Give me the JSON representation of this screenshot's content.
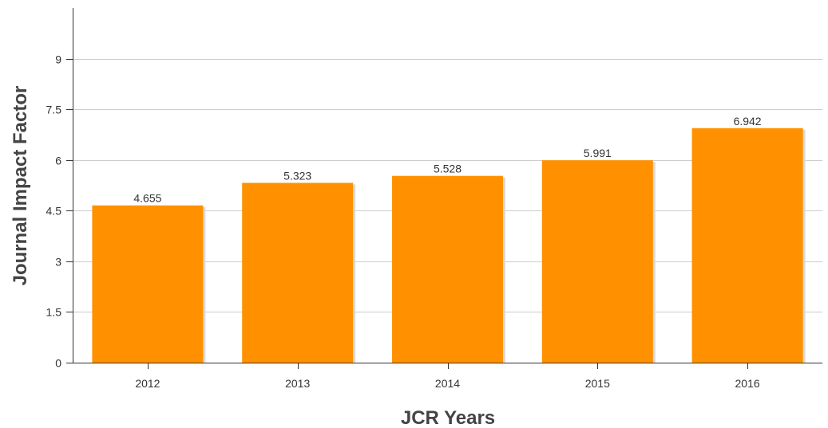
{
  "chart_data": {
    "type": "bar",
    "categories": [
      "2012",
      "2013",
      "2014",
      "2015",
      "2016"
    ],
    "values": [
      4.655,
      5.323,
      5.528,
      5.991,
      6.942
    ],
    "data_labels": [
      "4.655",
      "5.323",
      "5.528",
      "5.991",
      "6.942"
    ],
    "xlabel": "JCR Years",
    "ylabel": "Journal Impact Factor",
    "ylim": [
      0,
      10.5
    ],
    "yticks": [
      0,
      1.5,
      3,
      4.5,
      6,
      7.5,
      9
    ],
    "ytick_labels": [
      "0",
      "1.5",
      "3",
      "4.5",
      "6",
      "7.5",
      "9"
    ],
    "grid": "horizontal",
    "colors": {
      "bar": "#ff9100",
      "bar_shadow": "#d9d9d9",
      "grid": "#cccccc",
      "axis": "#333333",
      "text": "#333333",
      "axis_title": "#444444"
    }
  }
}
